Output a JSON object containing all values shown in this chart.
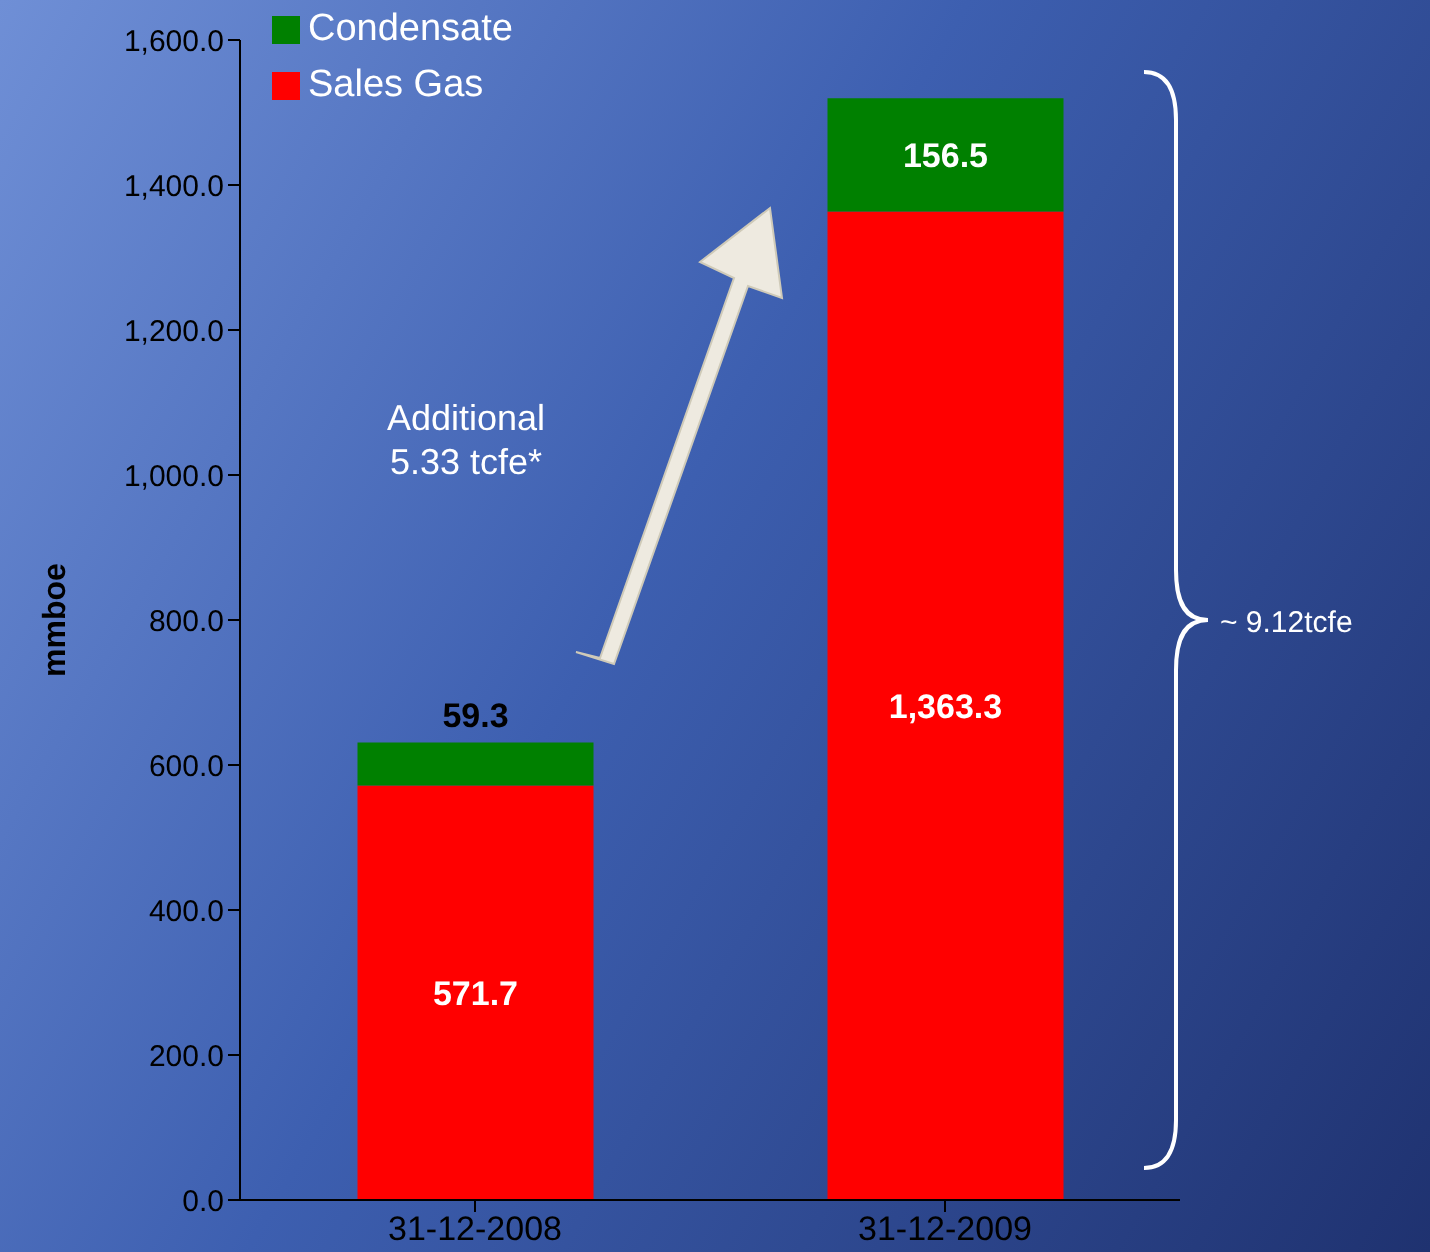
{
  "chart_data": {
    "type": "bar",
    "stacked": true,
    "ylabel": "mmboe",
    "categories": [
      "31-12-2008",
      "31-12-2009"
    ],
    "series": [
      {
        "name": "Sales Gas",
        "color": "#ff0000",
        "values": [
          571.7,
          1363.3
        ],
        "value_labels": [
          "571.7",
          "1,363.3"
        ]
      },
      {
        "name": "Condensate",
        "color": "#008000",
        "values": [
          59.3,
          156.5
        ],
        "value_labels": [
          "59.3",
          "156.5"
        ]
      }
    ],
    "ylim": [
      0,
      1600
    ],
    "yticks": [
      {
        "value": 0,
        "label": "0.0"
      },
      {
        "value": 200,
        "label": "200.0"
      },
      {
        "value": 400,
        "label": "400.0"
      },
      {
        "value": 600,
        "label": "600.0"
      },
      {
        "value": 800,
        "label": "800.0"
      },
      {
        "value": 1000,
        "label": "1,000.0"
      },
      {
        "value": 1200,
        "label": "1,200.0"
      },
      {
        "value": 1400,
        "label": "1,400.0"
      },
      {
        "value": 1600,
        "label": "1,600.0"
      }
    ],
    "legend": "top left",
    "grid": false,
    "annotations": [
      "Additional\n5.33 tcfe*",
      "~ 9.12tcfe"
    ]
  }
}
